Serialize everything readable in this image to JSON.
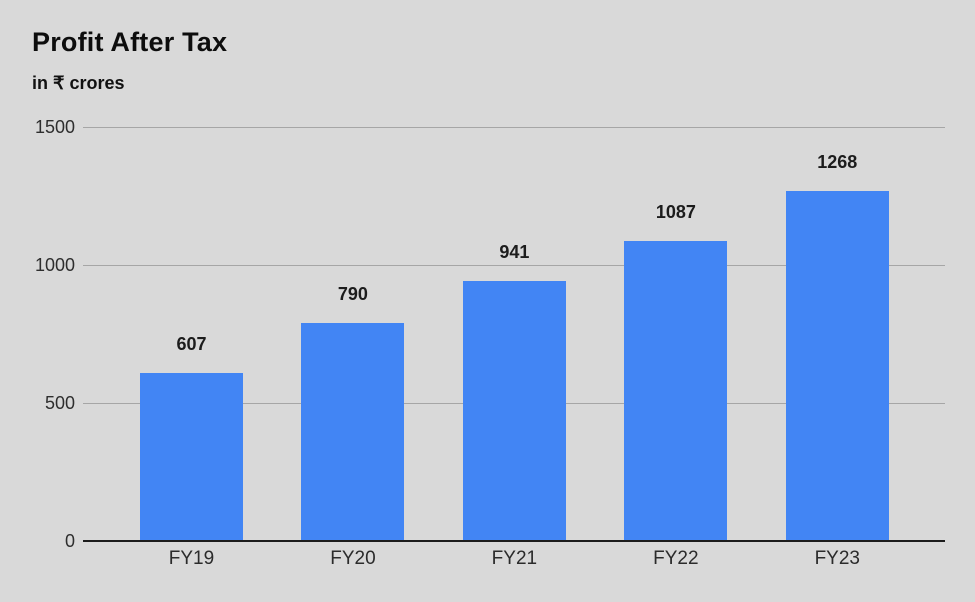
{
  "header": {
    "title": "Profit After Tax",
    "subtitle": "in ₹ crores"
  },
  "chart_data": {
    "type": "bar",
    "title": "Profit After Tax",
    "subtitle": "in ₹ crores",
    "categories": [
      "FY19",
      "FY20",
      "FY21",
      "FY22",
      "FY23"
    ],
    "values": [
      607,
      790,
      941,
      1087,
      1268
    ],
    "xlabel": "",
    "ylabel": "",
    "ylim": [
      0,
      1500
    ],
    "yticks": [
      0,
      500,
      1000,
      1500
    ],
    "grid": true,
    "legend": false,
    "bar_color": "#4285f4",
    "background_color": "#d9d9d9",
    "gridline_color": "#a6a6a6",
    "baseline_color": "#1c1c1c"
  }
}
